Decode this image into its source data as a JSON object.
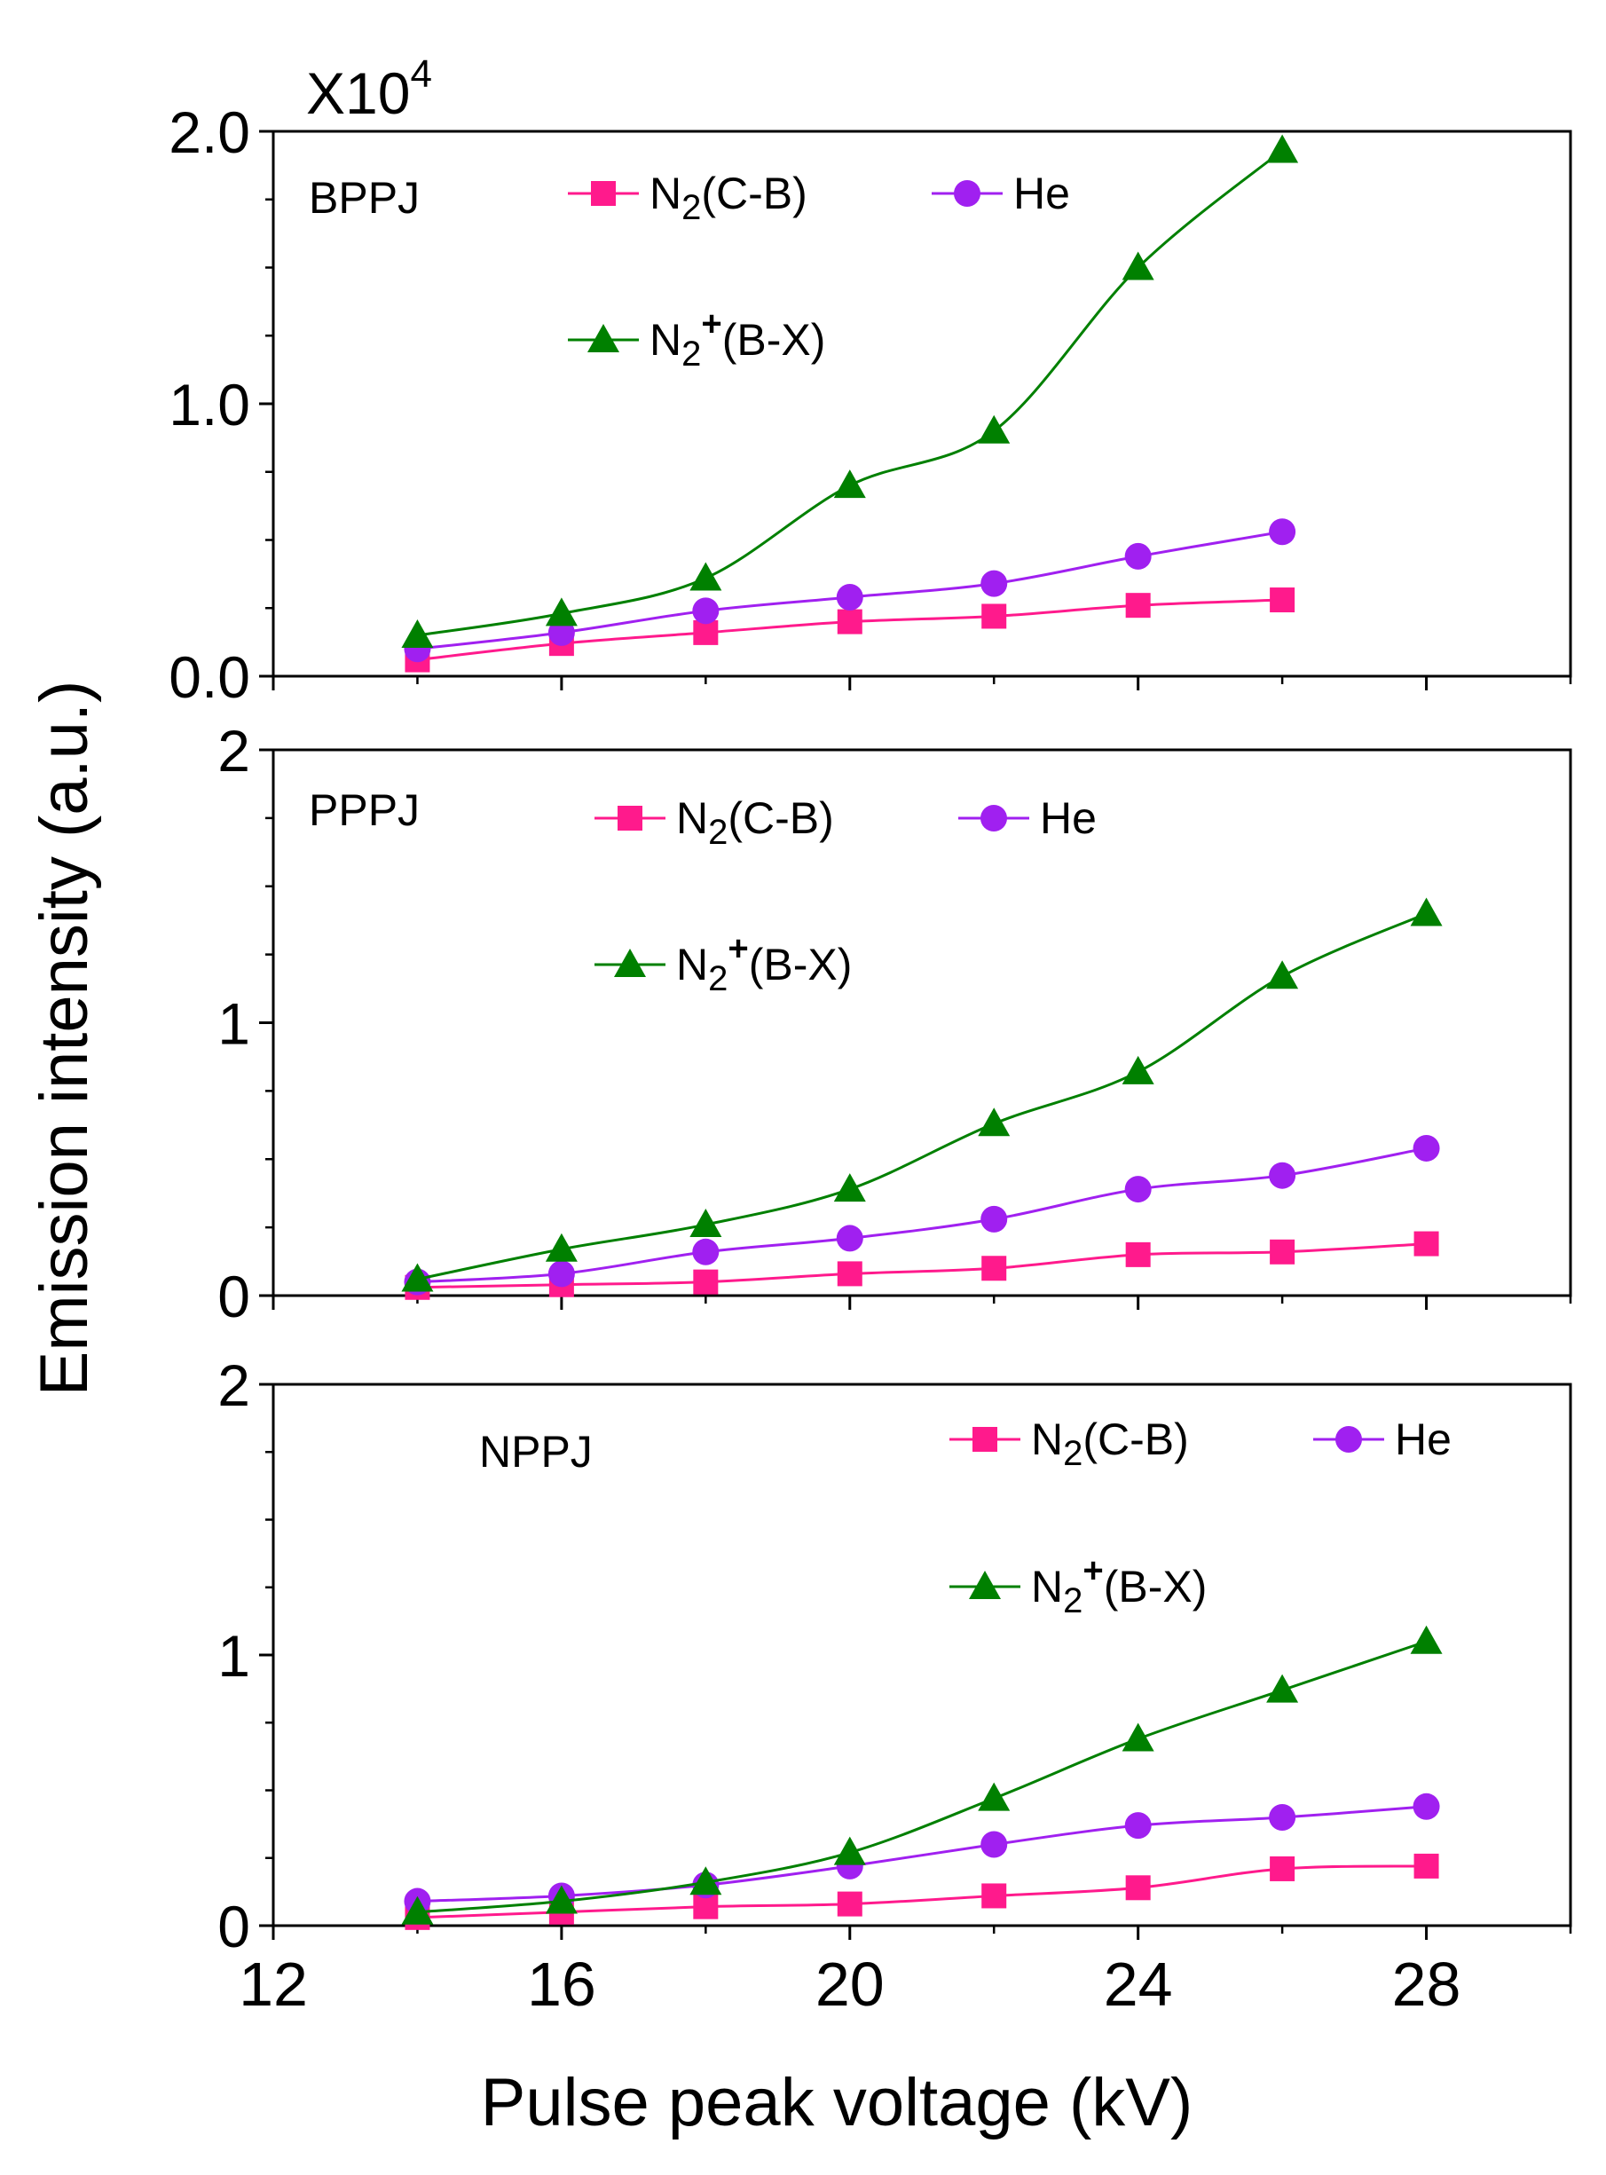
{
  "figure": {
    "multiplier_base": "X10",
    "multiplier_exp": "4",
    "ylabel": "Emission intensity (a.u.)",
    "xlabel": "Pulse peak voltage (kV)"
  },
  "colors": {
    "n2_cb": "#ff1a8c",
    "he": "#a020f0",
    "n2plus_bx": "#008000",
    "axis": "#000000"
  },
  "chart_data": [
    {
      "type": "line",
      "title": "BPPJ",
      "xlabel": "Pulse peak voltage (kV)",
      "ylabel": "Emission intensity (a.u.)",
      "xlim": [
        12,
        30
      ],
      "ylim": [
        0,
        2
      ],
      "xticks": [
        12,
        16,
        20,
        24,
        28
      ],
      "yticks": [
        "0.0",
        "1.0",
        "2.0"
      ],
      "y_multiplier": "X10^4",
      "x": [
        14,
        16,
        18,
        20,
        22,
        24,
        26
      ],
      "series": [
        {
          "name": "N2(C-B)",
          "name_base": "N",
          "name_sub": "2",
          "name_sup": "",
          "name_rest": "(C-B)",
          "color": "#ff1a8c",
          "marker": "square",
          "values": [
            0.06,
            0.12,
            0.16,
            0.2,
            0.22,
            0.26,
            0.28
          ]
        },
        {
          "name": "He",
          "name_base": "He",
          "name_sub": "",
          "name_sup": "",
          "name_rest": "",
          "color": "#a020f0",
          "marker": "circle",
          "values": [
            0.1,
            0.16,
            0.24,
            0.29,
            0.34,
            0.44,
            0.53
          ]
        },
        {
          "name": "N2+(B-X)",
          "name_base": "N",
          "name_sub": "2",
          "name_sup": "+",
          "name_rest": "(B-X)",
          "color": "#008000",
          "marker": "triangle",
          "values": [
            0.15,
            0.23,
            0.36,
            0.7,
            0.9,
            1.5,
            1.93
          ]
        }
      ]
    },
    {
      "type": "line",
      "title": "PPPJ",
      "xlabel": "Pulse peak voltage (kV)",
      "ylabel": "Emission intensity (a.u.)",
      "xlim": [
        12,
        30
      ],
      "ylim": [
        0,
        2
      ],
      "xticks": [
        12,
        16,
        20,
        24,
        28
      ],
      "yticks": [
        "0",
        "1",
        "2"
      ],
      "x": [
        14,
        16,
        18,
        20,
        22,
        24,
        26,
        28
      ],
      "series": [
        {
          "name": "N2(C-B)",
          "name_base": "N",
          "name_sub": "2",
          "name_sup": "",
          "name_rest": "(C-B)",
          "color": "#ff1a8c",
          "marker": "square",
          "values": [
            0.03,
            0.04,
            0.05,
            0.08,
            0.1,
            0.15,
            0.16,
            0.19
          ]
        },
        {
          "name": "He",
          "name_base": "He",
          "name_sub": "",
          "name_sup": "",
          "name_rest": "",
          "color": "#a020f0",
          "marker": "circle",
          "values": [
            0.05,
            0.08,
            0.16,
            0.21,
            0.28,
            0.39,
            0.44,
            0.54
          ]
        },
        {
          "name": "N2+(B-X)",
          "name_base": "N",
          "name_sub": "2",
          "name_sup": "+",
          "name_rest": "(B-X)",
          "color": "#008000",
          "marker": "triangle",
          "values": [
            0.06,
            0.17,
            0.26,
            0.39,
            0.63,
            0.82,
            1.17,
            1.4
          ]
        }
      ]
    },
    {
      "type": "line",
      "title": "NPPJ",
      "xlabel": "Pulse peak voltage (kV)",
      "ylabel": "Emission intensity (a.u.)",
      "xlim": [
        12,
        30
      ],
      "ylim": [
        0,
        2
      ],
      "xticks": [
        12,
        16,
        20,
        24,
        28
      ],
      "yticks": [
        "0",
        "1",
        "2"
      ],
      "x": [
        14,
        16,
        18,
        20,
        22,
        24,
        26,
        28
      ],
      "series": [
        {
          "name": "N2(C-B)",
          "name_base": "N",
          "name_sub": "2",
          "name_sup": "",
          "name_rest": "(C-B)",
          "color": "#ff1a8c",
          "marker": "square",
          "values": [
            0.03,
            0.05,
            0.07,
            0.08,
            0.11,
            0.14,
            0.21,
            0.22
          ]
        },
        {
          "name": "He",
          "name_base": "He",
          "name_sub": "",
          "name_sup": "",
          "name_rest": "",
          "color": "#a020f0",
          "marker": "circle",
          "values": [
            0.09,
            0.11,
            0.15,
            0.22,
            0.3,
            0.37,
            0.4,
            0.44
          ]
        },
        {
          "name": "N2+(B-X)",
          "name_base": "N",
          "name_sub": "2",
          "name_sup": "+",
          "name_rest": "(B-X)",
          "color": "#008000",
          "marker": "triangle",
          "values": [
            0.05,
            0.09,
            0.16,
            0.27,
            0.47,
            0.69,
            0.87,
            1.05
          ]
        }
      ]
    }
  ]
}
